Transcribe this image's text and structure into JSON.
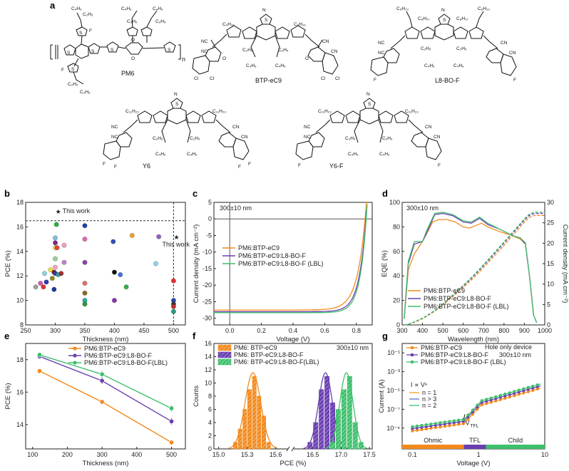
{
  "panel_letters": {
    "a": "a",
    "b": "b",
    "c": "c",
    "d": "d",
    "e": "e",
    "f": "f",
    "g": "g"
  },
  "colors": {
    "orange": "#f28a1e",
    "purple": "#6a3fb0",
    "green": "#3fbf6c",
    "red": "#e53935",
    "blue": "#2f6fd0"
  },
  "molecules": {
    "pm6": {
      "name": "PM6",
      "n": "n"
    },
    "btp": {
      "name": "BTP-eC9"
    },
    "l8": {
      "name": "L8-BO-F"
    },
    "y6": {
      "name": "Y6"
    },
    "y6f": {
      "name": "Y6-F"
    },
    "atoms": {
      "F": "F",
      "S": "S",
      "N": "N",
      "O": "O",
      "Cl": "Cl",
      "CN": "CN",
      "NC": "NC",
      "C4H9": "C₄H₉",
      "C2H5": "C₂H₅",
      "C6H13": "C₆H₁₃",
      "C8H17": "C₈H₁₇",
      "C9H19": "C₉H₁₉",
      "C11H23": "C₁₁H₂₃"
    }
  },
  "chart_data": [
    {
      "id": "b",
      "type": "scatter",
      "xlabel": "Thickness (nm)",
      "ylabel": "PCE (%)",
      "xlim": [
        250,
        520
      ],
      "ylim": [
        8,
        18
      ],
      "xticks": [
        250,
        300,
        350,
        400,
        450,
        500
      ],
      "yticks": [
        8,
        10,
        12,
        14,
        16,
        18
      ],
      "this_work_label": "This work",
      "this_work": [
        {
          "x": 305,
          "y": 17.3
        },
        {
          "x": 505,
          "y": 15.2
        }
      ],
      "reference_line_y": 16.5,
      "reference_line_x": 500,
      "literature": [
        {
          "x": 267,
          "y": 11.1,
          "c": "#a0a0a0"
        },
        {
          "x": 275,
          "y": 11.4,
          "c": "#d65ab6"
        },
        {
          "x": 280,
          "y": 11.1,
          "c": "#e23030"
        },
        {
          "x": 282,
          "y": 12.2,
          "c": "#8ad4e6"
        },
        {
          "x": 285,
          "y": 11.5,
          "c": "#2e3bb0"
        },
        {
          "x": 292,
          "y": 12.5,
          "c": "#f2e040"
        },
        {
          "x": 295,
          "y": 11.8,
          "c": "#8a8a20"
        },
        {
          "x": 298,
          "y": 12.3,
          "c": "#7a1f1f"
        },
        {
          "x": 300,
          "y": 12.2,
          "c": "#3a3a9a"
        },
        {
          "x": 300,
          "y": 12.7,
          "c": "#f4a0c0"
        },
        {
          "x": 300,
          "y": 13.4,
          "c": "#9ad0a0"
        },
        {
          "x": 300,
          "y": 14.3,
          "c": "#fbe040"
        },
        {
          "x": 300,
          "y": 15.1,
          "c": "#80c0e0"
        },
        {
          "x": 300,
          "y": 14.7,
          "c": "#7b2a8a"
        },
        {
          "x": 302,
          "y": 16.2,
          "c": "#2bb03a"
        },
        {
          "x": 298,
          "y": 10.9,
          "c": "#1a3aa0"
        },
        {
          "x": 303,
          "y": 14.3,
          "c": "#e04040"
        },
        {
          "x": 305,
          "y": 12.1,
          "c": "#38a0a0"
        },
        {
          "x": 310,
          "y": 12.2,
          "c": "#a03030"
        },
        {
          "x": 315,
          "y": 13.1,
          "c": "#c080d0"
        },
        {
          "x": 315,
          "y": 14.5,
          "c": "#f0a0c0"
        },
        {
          "x": 350,
          "y": 16.1,
          "c": "#2040b0"
        },
        {
          "x": 350,
          "y": 15.0,
          "c": "#e06ab0"
        },
        {
          "x": 350,
          "y": 13.1,
          "c": "#8a40b0"
        },
        {
          "x": 350,
          "y": 11.4,
          "c": "#e07070"
        },
        {
          "x": 350,
          "y": 10.6,
          "c": "#8a6a20"
        },
        {
          "x": 350,
          "y": 10.0,
          "c": "#2bb0a0"
        },
        {
          "x": 350,
          "y": 9.7,
          "c": "#2e9a3a"
        },
        {
          "x": 398,
          "y": 14.8,
          "c": "#3050b0"
        },
        {
          "x": 400,
          "y": 12.3,
          "c": "#111111"
        },
        {
          "x": 400,
          "y": 10.0,
          "c": "#8a30b0"
        },
        {
          "x": 410,
          "y": 12.1,
          "c": "#4070e0"
        },
        {
          "x": 420,
          "y": 11.1,
          "c": "#3ab04a"
        },
        {
          "x": 430,
          "y": 15.3,
          "c": "#f0a030"
        },
        {
          "x": 470,
          "y": 13.0,
          "c": "#8ad4f0"
        },
        {
          "x": 475,
          "y": 15.2,
          "c": "#9060c0"
        },
        {
          "x": 500,
          "y": 11.6,
          "c": "#e03030"
        },
        {
          "x": 500,
          "y": 10.0,
          "c": "#2b4ab0"
        },
        {
          "x": 500,
          "y": 9.7,
          "c": "#3a3a3a"
        },
        {
          "x": 500,
          "y": 9.5,
          "c": "#c03030"
        },
        {
          "x": 500,
          "y": 9.1,
          "c": "#2a9a80"
        }
      ]
    },
    {
      "id": "c",
      "type": "line",
      "xlabel": "Voltage (V)",
      "ylabel": "Current density (mA cm⁻²)",
      "xlim": [
        -0.1,
        0.9
      ],
      "ylim": [
        -32,
        5
      ],
      "xticks": [
        0.0,
        0.2,
        0.4,
        0.6,
        0.8
      ],
      "yticks": [
        -30,
        -25,
        -20,
        -15,
        -10,
        -5,
        0,
        5
      ],
      "annotation": "300±10 nm",
      "series": [
        {
          "name": "PM6:BTP-eC9",
          "color": "#f28a1e",
          "jsc": 27.5,
          "voc": 0.855,
          "n": 2.0
        },
        {
          "name": "PM6:BTP-eC9:L8-BO-F",
          "color": "#6a3fb0",
          "jsc": 28.0,
          "voc": 0.86,
          "n": 1.7
        },
        {
          "name": "PM6:BTP-eC9:L8-BO-F (LBL)",
          "color": "#3fbf6c",
          "jsc": 28.3,
          "voc": 0.862,
          "n": 1.6
        }
      ]
    },
    {
      "id": "d",
      "type": "line",
      "xlabel": "Wavelength (nm)",
      "ylabel": "EQE (%)",
      "ylabel_right": "Current density (mA cm⁻²)",
      "xlim": [
        300,
        1000
      ],
      "ylim": [
        0,
        100
      ],
      "ylim_right": [
        0,
        30
      ],
      "xticks": [
        300,
        400,
        500,
        600,
        700,
        800,
        900,
        1000
      ],
      "yticks": [
        0,
        20,
        40,
        60,
        80,
        100
      ],
      "yticks_right": [
        0,
        5,
        10,
        15,
        20,
        25,
        30
      ],
      "annotation": "300±10 nm",
      "series": [
        {
          "name": "PM6:BTP-eC9",
          "color": "#f28a1e",
          "eqe": [
            [
              310,
              5
            ],
            [
              330,
              45
            ],
            [
              360,
              58
            ],
            [
              400,
              68
            ],
            [
              450,
              84
            ],
            [
              480,
              86
            ],
            [
              520,
              86
            ],
            [
              560,
              84
            ],
            [
              600,
              80
            ],
            [
              630,
              79
            ],
            [
              660,
              81
            ],
            [
              690,
              83
            ],
            [
              720,
              80
            ],
            [
              780,
              76
            ],
            [
              840,
              73
            ],
            [
              880,
              70
            ],
            [
              905,
              66
            ],
            [
              925,
              40
            ],
            [
              945,
              8
            ],
            [
              960,
              2
            ]
          ],
          "jint": 26.8
        },
        {
          "name": "PM6:BTP-eC9:L8-BO-F",
          "color": "#6a3fb0",
          "eqe": [
            [
              310,
              5
            ],
            [
              330,
              50
            ],
            [
              360,
              66
            ],
            [
              400,
              68
            ],
            [
              420,
              75
            ],
            [
              460,
              90
            ],
            [
              500,
              91
            ],
            [
              550,
              89
            ],
            [
              600,
              84
            ],
            [
              640,
              83
            ],
            [
              680,
              87
            ],
            [
              720,
              82
            ],
            [
              780,
              78
            ],
            [
              840,
              73
            ],
            [
              880,
              71
            ],
            [
              905,
              66
            ],
            [
              925,
              40
            ],
            [
              945,
              8
            ],
            [
              960,
              2
            ]
          ],
          "jint": 27.3
        },
        {
          "name": "PM6:BTP-eC9:L8-BO-F (LBL)",
          "color": "#3fbf6c",
          "eqe": [
            [
              310,
              5
            ],
            [
              330,
              52
            ],
            [
              360,
              68
            ],
            [
              400,
              68
            ],
            [
              420,
              77
            ],
            [
              460,
              91
            ],
            [
              500,
              92
            ],
            [
              550,
              90
            ],
            [
              600,
              85
            ],
            [
              640,
              84
            ],
            [
              680,
              88
            ],
            [
              720,
              83
            ],
            [
              780,
              78
            ],
            [
              840,
              73
            ],
            [
              880,
              71
            ],
            [
              905,
              67
            ],
            [
              925,
              40
            ],
            [
              945,
              8
            ],
            [
              960,
              2
            ]
          ],
          "jint": 27.6
        }
      ]
    },
    {
      "id": "e",
      "type": "line",
      "xlabel": "Thickness (nm)",
      "ylabel": "PCE (%)",
      "xlim": [
        80,
        540
      ],
      "ylim": [
        12.5,
        19
      ],
      "xticks": [
        100,
        200,
        300,
        400,
        500
      ],
      "yticks": [
        14,
        16,
        18
      ],
      "x": [
        120,
        300,
        500
      ],
      "series": [
        {
          "name": "PM6:BTP-eC9",
          "color": "#f28a1e",
          "values": [
            17.3,
            15.4,
            12.9
          ],
          "err": [
            0.15,
            0.15,
            0.15
          ]
        },
        {
          "name": "PM6:BTP-eC9:L8-BO-F",
          "color": "#6a3fb0",
          "values": [
            18.2,
            16.7,
            14.2
          ],
          "err": [
            0.15,
            0.2,
            0.2
          ]
        },
        {
          "name": "PM6:BTP-eC9:L8-BO-F(LBL)",
          "color": "#3fbf6c",
          "values": [
            18.3,
            17.1,
            15.0
          ],
          "err": [
            0.15,
            0.2,
            0.2
          ]
        }
      ]
    },
    {
      "id": "f",
      "type": "bar",
      "xlabel": "PCE (%)",
      "ylabel": "Counts",
      "ylim": [
        0,
        16
      ],
      "yticks": [
        0,
        2,
        4,
        6,
        8,
        10,
        12,
        14,
        16
      ],
      "xticks_left": [
        15.0,
        15.3,
        15.6
      ],
      "xticks_right": [
        16.5,
        17.0,
        17.5
      ],
      "annotation": "300±10 nm",
      "series": [
        {
          "name": "PM6: BTP-eC9",
          "color": "#f28a1e",
          "bins": [
            [
              15.175,
              0.04,
              1
            ],
            [
              15.225,
              0.04,
              3
            ],
            [
              15.275,
              0.04,
              6
            ],
            [
              15.325,
              0.04,
              9
            ],
            [
              15.375,
              0.04,
              11
            ],
            [
              15.425,
              0.04,
              8
            ],
            [
              15.475,
              0.04,
              5
            ],
            [
              15.525,
              0.04,
              1
            ]
          ]
        },
        {
          "name": "PM6: BTP-eC9:L8-BO-F",
          "color": "#6a3fb0",
          "bins": [
            [
              16.45,
              0.08,
              1
            ],
            [
              16.55,
              0.08,
              4
            ],
            [
              16.65,
              0.08,
              9
            ],
            [
              16.75,
              0.08,
              11
            ],
            [
              16.85,
              0.08,
              7
            ],
            [
              16.95,
              0.08,
              2
            ]
          ]
        },
        {
          "name": "PM6: BTP-eC9:L8-BO-F(LBL)",
          "color": "#3fbf6c",
          "bins": [
            [
              16.85,
              0.08,
              1
            ],
            [
              16.95,
              0.08,
              6
            ],
            [
              17.05,
              0.08,
              9
            ],
            [
              17.15,
              0.08,
              11
            ],
            [
              17.25,
              0.08,
              4
            ],
            [
              17.35,
              0.08,
              1
            ]
          ]
        }
      ]
    },
    {
      "id": "g",
      "type": "line",
      "xlabel": "Voltage (V)",
      "ylabel": "Current (A)",
      "xscale": "log",
      "yscale": "log",
      "xlim": [
        0.07,
        10
      ],
      "ylim": [
        1e-10,
        1
      ],
      "xticks": [
        0.1,
        1,
        10
      ],
      "yticks": [
        "10⁻⁹",
        "10⁻⁷",
        "10⁻⁵",
        "10⁻³",
        "10⁻¹"
      ],
      "annotation": "Hole only device",
      "annotation2": "300±10 nm",
      "law": "I ∝ Vⁿ",
      "fits": [
        {
          "label": "n = 1",
          "color": "#f2a21e"
        },
        {
          "label": "n > 3",
          "color": "#5a6fd0"
        },
        {
          "label": "n = 2",
          "color": "#3fbf6c"
        }
      ],
      "vtfl": "V",
      "vtfl_sub": "TFL",
      "regions": [
        {
          "label": "Ohmic",
          "color": "#f28a1e"
        },
        {
          "label": "TFL",
          "color": "#6a3fb0"
        },
        {
          "label": "Child",
          "color": "#3fbf6c"
        }
      ],
      "series": [
        {
          "name": "PM6:BTP-eC9",
          "color": "#f28a1e"
        },
        {
          "name": "PM6:BTP-eC9:L8-BO-F",
          "color": "#6a3fb0"
        },
        {
          "name": "PM6:BTP-eC9:L8-BO-F (LBL)",
          "color": "#3fbf6c"
        }
      ]
    }
  ]
}
